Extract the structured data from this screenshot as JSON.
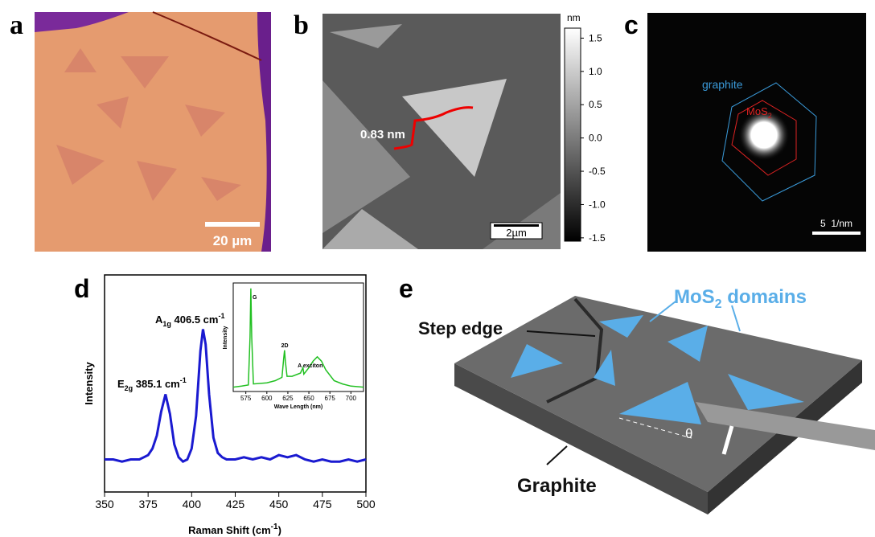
{
  "panels": {
    "a": {
      "label": "a",
      "scale_bar": "20 µm"
    },
    "b": {
      "label": "b",
      "colorbar_unit": "nm",
      "colorbar_lim": [
        -1.55,
        1.65
      ],
      "colorbar_ticks": [
        1.5,
        {
          "value": 1,
          "label": "1.0"
        },
        0.5,
        {
          "value": 0,
          "label": "0.0"
        },
        -0.5,
        {
          "value": -1,
          "label": "-1.0"
        },
        -1.5
      ],
      "step_label": "0.83 nm",
      "scale_bar": "2µm"
    },
    "c": {
      "label": "c",
      "graphite": "graphite",
      "mos2": "MoS",
      "mos2_sub": "2",
      "scale_bar": "5  1/nm"
    },
    "d": {
      "label": "d"
    },
    "e": {
      "label": "e",
      "step_edge": "Step edge",
      "domains": "MoS",
      "domains_sub": "2",
      "domains_rest": " domains",
      "graphite": "Graphite",
      "angle": "θ"
    }
  },
  "chart_data": [
    {
      "type": "line",
      "y_label": "Intensity",
      "x_label": [
        "Raman Shift (cm",
        "-1",
        ")"
      ],
      "xlim": [
        350,
        500
      ],
      "xticks": [
        350,
        375,
        400,
        425,
        450,
        475,
        500
      ],
      "ylim": [
        0,
        1
      ],
      "annotations": [
        {
          "text": "E",
          "sub": "2g",
          "rest": " 385.1 cm",
          "sup": "-1"
        },
        {
          "text": "A",
          "sub": "1g",
          "rest": " 406.5 cm",
          "sup": "-1"
        }
      ],
      "x": [
        350,
        355,
        360,
        365,
        370,
        372.5,
        375,
        377.5,
        380,
        382.5,
        385,
        387.5,
        390,
        392.5,
        395,
        397.5,
        400,
        402.5,
        405,
        406.5,
        408,
        410,
        412.5,
        415,
        417.5,
        420,
        425,
        430,
        435,
        440,
        445,
        450,
        455,
        460,
        465,
        470,
        475,
        480,
        485,
        490,
        495,
        500
      ],
      "series": [
        {
          "color": "#1a1ad0",
          "values": [
            0.15,
            0.15,
            0.14,
            0.15,
            0.15,
            0.16,
            0.17,
            0.2,
            0.26,
            0.37,
            0.45,
            0.36,
            0.22,
            0.16,
            0.14,
            0.15,
            0.2,
            0.35,
            0.65,
            0.75,
            0.68,
            0.45,
            0.25,
            0.18,
            0.16,
            0.15,
            0.15,
            0.16,
            0.15,
            0.16,
            0.15,
            0.17,
            0.16,
            0.17,
            0.15,
            0.14,
            0.15,
            0.14,
            0.14,
            0.15,
            0.14,
            0.15
          ]
        }
      ]
    },
    {
      "type": "line",
      "y_label": "Intensity",
      "x_label": "Wave Length (nm)",
      "xlim": [
        560,
        715
      ],
      "xticks": [
        575,
        600,
        625,
        650,
        675,
        700
      ],
      "ylim": [
        0,
        1
      ],
      "peak_labels": [
        "G",
        "2D",
        "A exciton"
      ],
      "x": [
        560,
        570,
        578,
        580,
        581,
        582,
        584,
        600,
        610,
        618,
        620,
        621,
        622,
        624,
        630,
        640,
        643,
        644,
        650,
        655,
        660,
        665,
        670,
        680,
        690,
        700,
        715
      ],
      "series": [
        {
          "color": "#22c022",
          "values": [
            0.04,
            0.05,
            0.06,
            0.5,
            0.95,
            0.5,
            0.07,
            0.08,
            0.1,
            0.13,
            0.3,
            0.38,
            0.28,
            0.14,
            0.14,
            0.17,
            0.22,
            0.16,
            0.22,
            0.28,
            0.32,
            0.28,
            0.2,
            0.1,
            0.07,
            0.05,
            0.04
          ]
        }
      ]
    }
  ]
}
